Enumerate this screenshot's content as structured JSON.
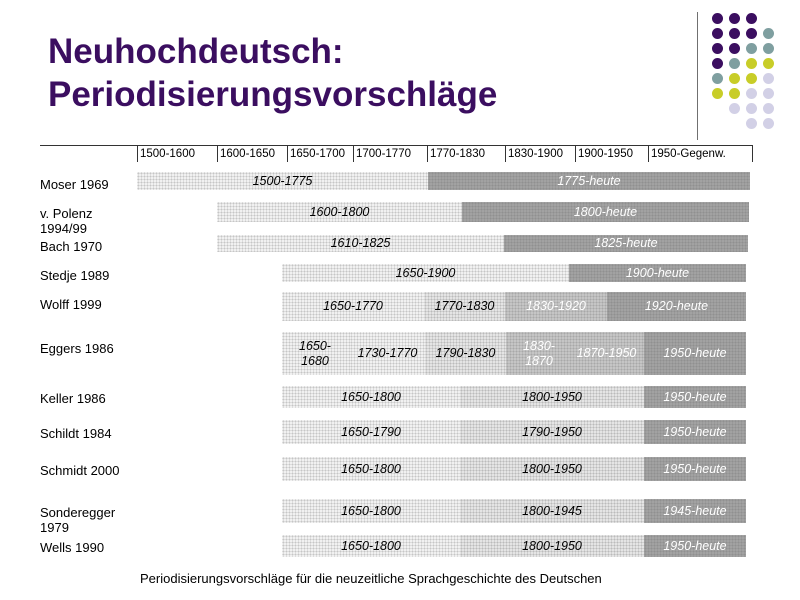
{
  "title_line1": "Neuhochdeutsch:",
  "title_line2": "Periodisierungsvorschläge",
  "header_periods": [
    "1500-1600",
    "1600-1650",
    "1650-1700",
    "1700-1770",
    "1770-1830",
    "1830-1900",
    "1900-1950",
    "1950-Gegenw."
  ],
  "rows": [
    {
      "label": "Moser 1969",
      "segments": [
        "1500-1775",
        "1775-heute"
      ]
    },
    {
      "label": "v. Polenz\n1994/99",
      "segments": [
        "1600-1800",
        "1800-heute"
      ]
    },
    {
      "label": "Bach 1970",
      "segments": [
        "1610-1825",
        "1825-heute"
      ]
    },
    {
      "label": "Stedje 1989",
      "segments": [
        "1650-1900",
        "1900-heute"
      ]
    },
    {
      "label": "Wolff 1999",
      "segments": [
        "1650-1770",
        "1770-1830",
        "1830-1920",
        "1920-heute"
      ]
    },
    {
      "label": "Eggers 1986",
      "segments": [
        "1650-\n1680",
        "1730-1770",
        "1790-1830",
        "1830-\n1870",
        "1870-1950",
        "1950-heute"
      ]
    },
    {
      "label": "Keller 1986",
      "segments": [
        "1650-1800",
        "1800-1950",
        "1950-heute"
      ]
    },
    {
      "label": "Schildt 1984",
      "segments": [
        "1650-1790",
        "1790-1950",
        "1950-heute"
      ]
    },
    {
      "label": "Schmidt 2000",
      "segments": [
        "1650-1800",
        "1800-1950",
        "1950-heute"
      ]
    },
    {
      "label": "Sonderegger\n1979",
      "segments": [
        "1650-1800",
        "1800-1945",
        "1945-heute"
      ]
    },
    {
      "label": "Wells 1990",
      "segments": [
        "1650-1800",
        "1800-1950",
        "1950-heute"
      ]
    }
  ],
  "caption": "Periodisierungsvorschläge für die neuzeitliche Sprachgeschichte des Deutschen",
  "colors": {
    "title": "#3b0e60",
    "dot_purple": "#3b0e60",
    "dot_teal": "#7f9fa0",
    "dot_yellow": "#c8cd28",
    "dot_lavender": "#d2d0e6"
  }
}
